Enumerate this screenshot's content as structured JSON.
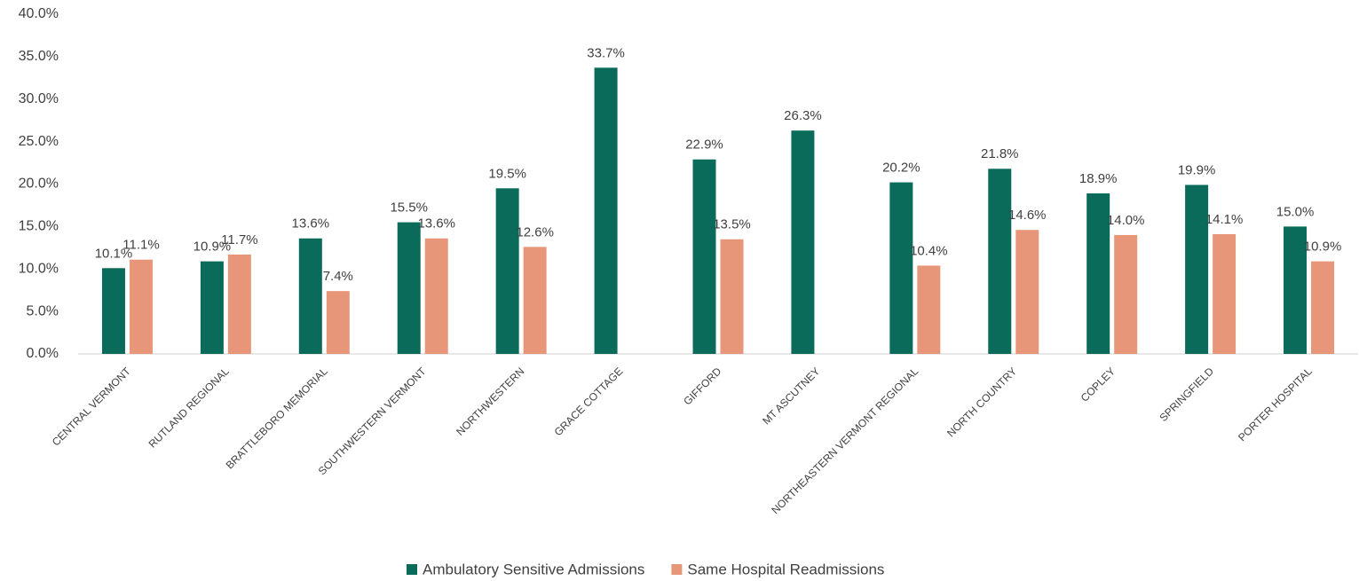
{
  "chart_data": {
    "type": "bar",
    "categories": [
      "CENTRAL VERMONT",
      "RUTLAND REGIONAL",
      "BRATTLEBORO MEMORIAL",
      "SOUTHWESTERN VERMONT",
      "NORTHWESTERN",
      "GRACE COTTAGE",
      "GIFFORD",
      "MT ASCUTNEY",
      "NORTHEASTERN VERMONT REGIONAL",
      "NORTH COUNTRY",
      "COPLEY",
      "SPRINGFIELD",
      "PORTER HOSPITAL"
    ],
    "series": [
      {
        "name": "Ambulatory Sensitive Admissions",
        "color": "#0b6b5a",
        "values": [
          10.1,
          10.9,
          13.6,
          15.5,
          19.5,
          33.7,
          22.9,
          26.3,
          20.2,
          21.8,
          18.9,
          19.9,
          15.0
        ],
        "value_labels": [
          "10.1%",
          "10.9%",
          "13.6%",
          "15.5%",
          "19.5%",
          "33.7%",
          "22.9%",
          "26.3%",
          "20.2%",
          "21.8%",
          "18.9%",
          "19.9%",
          "15.0%"
        ]
      },
      {
        "name": "Same Hospital Readmissions",
        "color": "#e8967a",
        "values": [
          11.1,
          11.7,
          7.4,
          13.6,
          12.6,
          null,
          13.5,
          null,
          10.4,
          14.6,
          14.0,
          14.1,
          10.9
        ],
        "value_labels": [
          "11.1%",
          "11.7%",
          "7.4%",
          "13.6%",
          "12.6%",
          null,
          "13.5%",
          null,
          "10.4%",
          "14.6%",
          "14.0%",
          "14.1%",
          "10.9%"
        ]
      }
    ],
    "ylim": [
      0,
      40
    ],
    "yticks": [
      {
        "value": 0,
        "label": "0.0%"
      },
      {
        "value": 5,
        "label": "5.0%"
      },
      {
        "value": 10,
        "label": "10.0%"
      },
      {
        "value": 15,
        "label": "15.0%"
      },
      {
        "value": 20,
        "label": "20.0%"
      },
      {
        "value": 25,
        "label": "25.0%"
      },
      {
        "value": 30,
        "label": "30.0%"
      },
      {
        "value": 35,
        "label": "35.0%"
      },
      {
        "value": 40,
        "label": "40.0%"
      }
    ],
    "legend": "bottom"
  }
}
